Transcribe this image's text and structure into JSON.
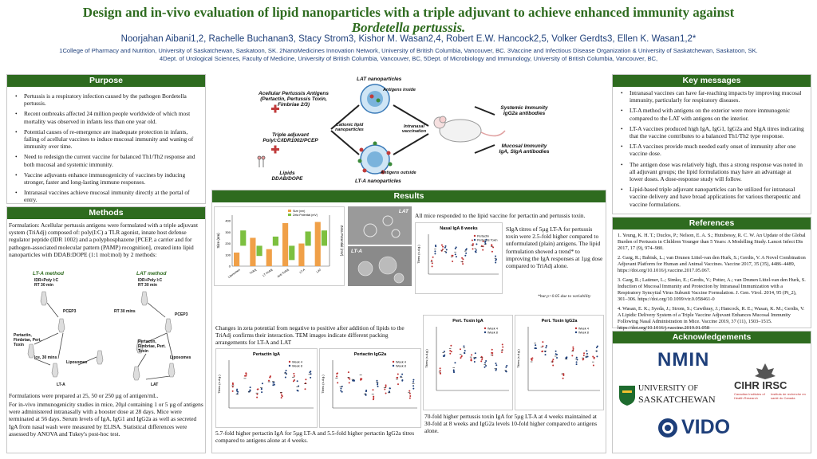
{
  "header": {
    "title_line1": "Design and in-vivo evaluation of lipid nanoparticles with a triple adjuvant to achieve enhanced immunity against",
    "title_line2": "Bordetella pertussis.",
    "authors": "Noorjahan Aibani1,2, Rachelle Buchanan3, Stacy Strom3, Kishor M. Wasan2,4, Robert E.W. Hancock2,5, Volker Gerdts3, Ellen K. Wasan1,2*",
    "affiliations_line1": "1College of Pharmacy and Nutrition, University of Saskatchewan, Saskatoon, SK. 2NanoMedicines Innovation Network, University of British Columbia, Vancouver, BC. 3Vaccine and Infectious Disease Organization & University of Saskatchewan, Saskatoon, SK.",
    "affiliations_line2": "4Dept. of Urological Sciences, Faculty of Medicine, University of British Columbia, Vancouver, BC, 5Dept. of Microbiology and Immunology, University of British Columbia, Vancouver, BC,"
  },
  "purpose": {
    "heading": "Purpose",
    "items": [
      "Pertussis is a respiratory infection caused by the pathogen Bordetella pertussis.",
      "Recent outbreaks affected 24 million people worldwide of which most mortality was observed in infants less than one year old.",
      "Potential causes of re-emergence are inadequate protection in infants, failing of acellular vaccines to induce mucosal immunity and waning of immunity over time.",
      "Need to redesign the current vaccine for balanced Th1/Th2 response and both mucosal and systemic immunity.",
      "Vaccine adjuvants enhance immunogenicity of vaccines by inducing stronger, faster and long-lasting immune responses.",
      "Intranasal vaccines achieve mucosal immunity directly at the portal of entry."
    ]
  },
  "methods": {
    "heading": "Methods",
    "formulation": "Formulation: Acellular pertussis antigens were formulated with a triple adjuvant system (TriAdj) composed of: poly(I:C) a TLR agonist, innate host defense regulator peptide (IDR 1002) and a polyphosphazene [PCEP, a carrier and for pathogen-associated molecular pattern (PAMP) recognition], created into lipid nanoparticles with DDAB:DOPE (1:1 mol:mol) by 2 methods:",
    "lta_method": "LT-A method",
    "lat_method": "LAT method",
    "step1": "IDR+Poly I:C",
    "step1b": "RT 30 min",
    "pcep": "PCEP3",
    "rt30": "RT 30 mins",
    "antigens": "Pertactin, Fimbriae, Pert. Toxin",
    "liposomes": "Liposomes",
    "ice": "Ice, 30 mins",
    "lta": "LT-A",
    "lat": "LAT",
    "formulations_note": "Formulations were prepared at 25, 50 or 250 µg of antigen/mL.",
    "invivo": "For in-vivo immunogenicity studies in mice, 20µl containing 1 or 5 µg of antigens were administered intranasally with a booster dose at 28 days. Mice were terminated at 56 days. Serum levels of IgA, IgG1 and IgG2a as well as secreted IgA from nasal wash were measured by ELISA. Statistical differences were assessed by ANOVA and Tukey's post-hoc test."
  },
  "diagram": {
    "lat_nano": "LAT nanoparticles",
    "antigens_inside": "Antigens inside",
    "acellular": "Acellular Pertussis Antigens",
    "acellular2": "(Pertactin, Pertussis Toxin,",
    "acellular3": "Fimbriae 2/3)",
    "triple": "Triple adjuvant",
    "triple2": "PolyI:C/IDR1002/PCEP",
    "lipids": "Lipids",
    "lipids2": "DDAB/DOPE",
    "cationic": "Cationic lipid",
    "cationic2": "nanoparticles",
    "intranasal": "Intranasal",
    "intranasal2": "vaccination",
    "systemic": "Systemic Immunity",
    "systemic2": "IgG2a antibodies",
    "mucosal": "Mucosal Immunity",
    "mucosal2": "IgA, SIgA antibodies",
    "antigens_outside": "Antigens outside",
    "lta_nano": "LT-A nanoparticles"
  },
  "results": {
    "heading": "Results",
    "all_mice": "All mice responded to the lipid vaccine for pertactin and pertussis toxin.",
    "zeta_caption": "Changes in zeta potential from negative to positive after addition of lipids to the TriAdj confirms their interaction. TEM images indicate different packing arrangements for LT-A and LAT",
    "siga_text": "SIgA titres of 5µg LT-A for pertussis toxin were 2.5-fold higher compared to unformulated (plain) antigens. The lipid formulation showed a trend* to improving the IgA responses at 1µg dose compared to TriAdj alone.",
    "siga_note": "*but p>0.05 due to variability",
    "pertactin_caption": "5.7-fold higher pertactin IgA for 5µg LT-A and 5.5-fold higher pertactin IgG2a titres compared to antigens alone at 4 weeks.",
    "toxin_caption": "70-fold higher pertussis toxin IgA for 5µg LT-A at 4 weeks maintained at 30-fold at 8 weeks and IgG2a levels 10-fold higher compared to antigens alone.",
    "tem_lat": "LAT",
    "tem_lta": "LT-A"
  },
  "key_messages": {
    "heading": "Key messages",
    "items": [
      "Intranasal vaccines can have far-reaching impacts by improving mucosal immunity, particularly for respiratory diseases.",
      "LT-A method with antigens on the exterior were more immunogenic compared to the LAT with antigens on the interior.",
      "LT-A vaccines produced high IgA, IgG1, IgG2a and SIgA titres indicating that the vaccine contributes to a balanced Th1/Th2 type response.",
      "LT-A vaccines provide much needed early onset of immunity after one vaccine dose.",
      "The antigen dose was relatively high, thus a strong response was noted in all adjuvant groups; the lipid formulations may have an advantage at lower doses. A dose-response study will follow.",
      "Lipid-based triple adjuvant nanoparticles can be utilized for intranasal vaccine delivery and have broad applications for various therapeutic and vaccine formulations."
    ]
  },
  "references": {
    "heading": "References",
    "items": [
      "1. Yeung, K. H. T.; Duclos, P.; Nelson, E. A. S.; Hutubessy, R. C. W. An Update of the Global Burden of Pertussis in Children Younger than 5 Years: A Modelling Study. Lancet Infect Dis 2017, 17 (9), 974–980.",
      "2. Garg, R.; Babiuk, L.; van Drunen Littel-van den Hurk, S.; Gerdts, V. A Novel Combination Adjuvant Platform for Human and Animal Vaccines. Vaccine 2017, 35 (35), 4486–4489, https://doi.org/10.1016/j.vaccine.2017.05.067.",
      "3. Garg, R.; Latimer, L.; Simko, E.; Gerdts, V.; Potter, A.; van Drunen Littel-van den Hurk, S. Induction of Mucosal Immunity and Protection by Intranasal Immunization with a Respiratory Syncytial Virus Subunit Vaccine Formulation. J. Gen. Virol. 2014, 95 (Pt_2), 301–306. https://doi.org/10.1099/vir.0.058461-0",
      "4. Wasan, E. K.; Syeda, J.; Strom, S.; Cawthray, J.; Hancock, R. E.; Wasan, K. M.; Gerdts, V. A Lipidic Delivery System of a Triple Vaccine Adjuvant Enhances Mucosal Immunity Following Nasal Administration in Mice. Vaccine 2019, 37 (11), 1503–1515. https://doi.org/10.1016/j.vaccine.2019.01.058"
    ]
  },
  "acknowledgements": {
    "heading": "Acknowledgements",
    "nmin": "NMIN",
    "usask1": "UNIVERSITY OF",
    "usask2": "SASKATCHEWAN",
    "cihr": "CIHR IRSC",
    "cihr_en": "Canadian Institutes of Health Research",
    "cihr_fr": "Instituts de recherche en santé du Canada",
    "vido": "VIDO"
  },
  "chart_data": [
    {
      "type": "bar",
      "categories": [
        "Liposomes",
        "TriAdj",
        "LT-TriAdj",
        "Anti-TriAdj",
        "LT-A",
        "LAT"
      ],
      "series": [
        {
          "name": "Size (nm)",
          "values": [
            120,
            250,
            150,
            380,
            200,
            390
          ],
          "color": "#f0a048"
        },
        {
          "name": "Zeta Potential (mV)",
          "values": [
            30,
            -20,
            18,
            -28,
            28,
            30
          ],
          "color": "#7dc040"
        }
      ],
      "ylabel": "Size (nm)",
      "y2label": "Zeta Potential (mV)",
      "ylim": [
        0,
        450
      ],
      "y2lim": [
        -40,
        60
      ]
    },
    {
      "type": "scatter",
      "title": "Nasal IgA 8 weeks",
      "legend": [
        "Pertactin",
        "Pertussis Toxin"
      ],
      "ylabel": "Titres (s.d.g.)"
    },
    {
      "type": "scatter",
      "title": "Pertactin IgA",
      "legend": [
        "Week 4",
        "Week 8"
      ],
      "ylabel": "Titres (s.d.g.)"
    },
    {
      "type": "scatter",
      "title": "Pertactin IgG2a",
      "legend": [
        "Week 4",
        "Week 8"
      ],
      "ylabel": "Titres (s.d.g.)"
    },
    {
      "type": "scatter",
      "title": "Pert. Toxin IgA",
      "legend": [
        "Week 4",
        "Week 8"
      ],
      "ylabel": "Titres (s.d.g.)"
    },
    {
      "type": "scatter",
      "title": "Pert. Toxin IgG2a",
      "legend": [
        "Week 4",
        "Week 8"
      ],
      "ylabel": "Titres (s.d.g.)"
    }
  ],
  "colors": {
    "green": "#2e6b1f",
    "blue": "#1e3f7a"
  }
}
